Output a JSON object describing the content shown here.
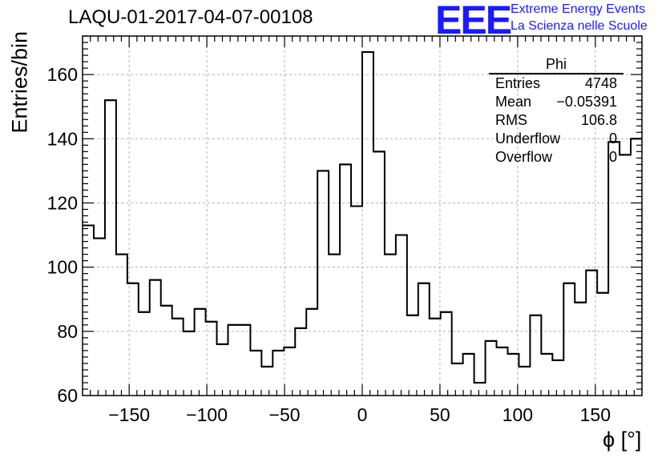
{
  "header": {
    "title": "LAQU-01-2017-04-07-00108",
    "logo_text": "EEE",
    "logo_line1": "Extreme Energy Events",
    "logo_line2": "La Scienza nelle Scuole"
  },
  "stats": {
    "name": "Phi",
    "rows": [
      {
        "key": "Entries",
        "value": "4748"
      },
      {
        "key": "Mean",
        "value": "−0.05391"
      },
      {
        "key": "RMS",
        "value": "106.8"
      },
      {
        "key": "Underflow",
        "value": "0"
      },
      {
        "key": "Overflow",
        "value": "0"
      }
    ]
  },
  "colors": {
    "line": "#000000",
    "grid": "#b0b0b0",
    "logo": "#1a1aff"
  },
  "chart_data": {
    "type": "histogram",
    "title": "LAQU-01-2017-04-07-00108",
    "xlabel": "ϕ [°]",
    "ylabel": "Entries/bin",
    "xlim": [
      -180,
      180
    ],
    "ylim": [
      60,
      172
    ],
    "bin_width": 7.2,
    "xticks": [
      -150,
      -100,
      -50,
      0,
      50,
      100,
      150
    ],
    "xtick_labels": [
      "−150",
      "−100",
      "−50",
      "0",
      "50",
      "100",
      "150"
    ],
    "yticks": [
      60,
      80,
      100,
      120,
      140,
      160
    ],
    "ytick_labels": [
      "60",
      "80",
      "100",
      "120",
      "140",
      "160"
    ],
    "grid": true,
    "values": [
      113,
      109,
      152,
      104,
      95,
      86,
      96,
      88,
      84,
      80,
      87,
      83,
      76,
      82,
      82,
      74,
      69,
      74,
      75,
      81,
      87,
      130,
      104,
      132,
      119,
      167,
      136,
      104,
      110,
      85,
      95,
      84,
      86,
      70,
      73,
      64,
      77,
      75,
      73,
      69,
      85,
      73,
      71,
      95,
      89,
      99,
      92,
      139,
      135,
      140
    ]
  }
}
